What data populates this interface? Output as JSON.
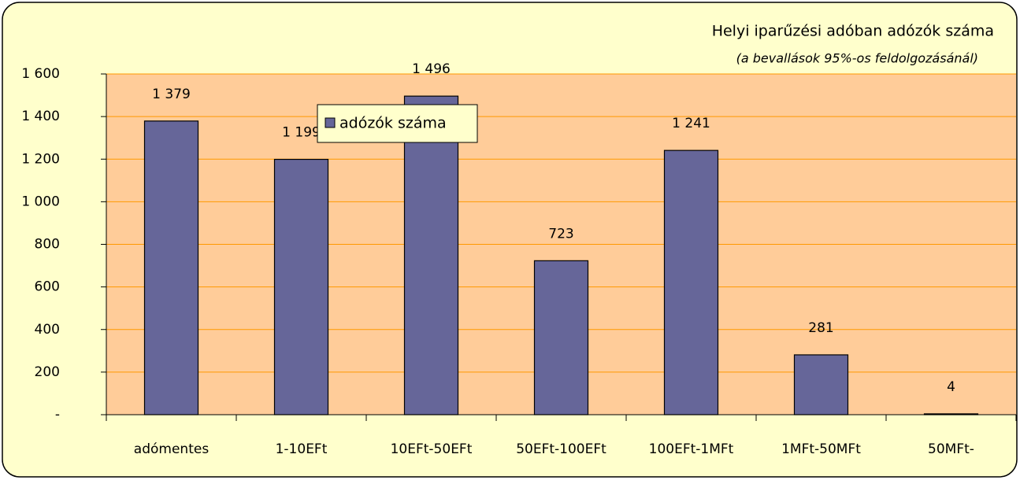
{
  "chart_data": {
    "type": "bar",
    "title": "Helyi iparűzési adóban adózók száma",
    "subtitle": "(a bevallások 95%-os feldolgozásánál)",
    "categories": [
      "adómentes",
      "1-10EFt",
      "10EFt-50EFt",
      "50EFt-100EFt",
      "100EFt-1MFt",
      "1MFt-50MFt",
      "50MFt-"
    ],
    "series": [
      {
        "name": "adózók száma",
        "color": "#666699",
        "values": [
          1379,
          1199,
          1496,
          723,
          1241,
          281,
          4
        ],
        "value_labels": [
          "1 379",
          "1 199",
          "1 496",
          "723",
          "1 241",
          "281",
          "4"
        ]
      }
    ],
    "ylim": [
      0,
      1600
    ],
    "yticks": [
      {
        "value": 0,
        "label": "-"
      },
      200,
      400,
      600,
      800,
      {
        "value": 1000,
        "label": "1 000"
      },
      {
        "value": 1200,
        "label": "1 200"
      },
      {
        "value": 1400,
        "label": "1 400"
      },
      {
        "value": 1600,
        "label": "1 600"
      }
    ],
    "grid": true,
    "legend": "upper left"
  }
}
